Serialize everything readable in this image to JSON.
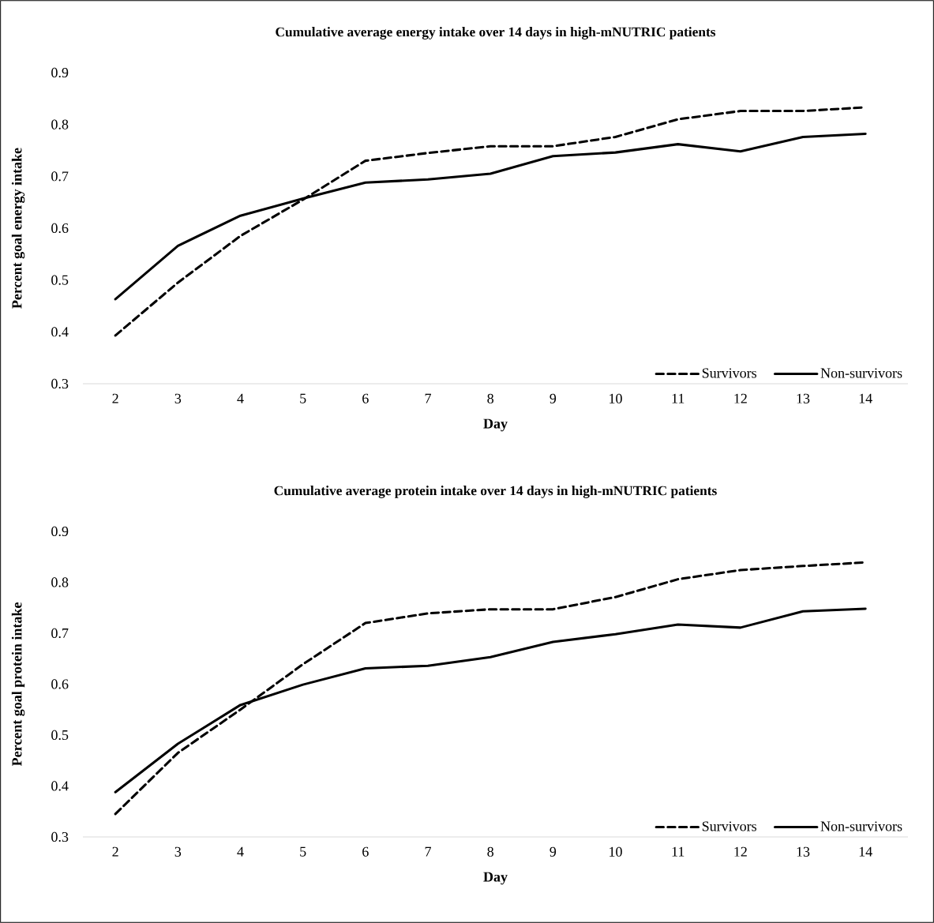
{
  "chart_data": [
    {
      "type": "line",
      "title": "Cumulative average energy intake over 14 days in high-mNUTRIC patients",
      "xlabel": "Day",
      "ylabel": "Percent goal energy intake",
      "categories": [
        "2",
        "3",
        "4",
        "5",
        "6",
        "7",
        "8",
        "9",
        "10",
        "11",
        "12",
        "13",
        "14"
      ],
      "ylim": [
        0.3,
        0.9
      ],
      "yticks": [
        0.3,
        0.4,
        0.5,
        0.6,
        0.7,
        0.8,
        0.9
      ],
      "legend": "bottom right",
      "series": [
        {
          "name": "Survivors",
          "color": "#000000",
          "line_style": "dashed",
          "values": [
            0.393,
            0.495,
            0.585,
            0.655,
            0.73,
            0.745,
            0.758,
            0.758,
            0.776,
            0.81,
            0.826,
            0.826,
            0.833
          ]
        },
        {
          "name": "Non-survivors",
          "color": "#000000",
          "line_style": "solid",
          "values": [
            0.463,
            0.566,
            0.624,
            0.657,
            0.688,
            0.694,
            0.705,
            0.739,
            0.746,
            0.762,
            0.748,
            0.776,
            0.782
          ]
        }
      ]
    },
    {
      "type": "line",
      "title": "Cumulative average protein intake over 14 days in high-mNUTRIC patients",
      "xlabel": "Day",
      "ylabel": "Percent goal protein intake",
      "categories": [
        "2",
        "3",
        "4",
        "5",
        "6",
        "7",
        "8",
        "9",
        "10",
        "11",
        "12",
        "13",
        "14"
      ],
      "ylim": [
        0.3,
        0.9
      ],
      "yticks": [
        0.3,
        0.4,
        0.5,
        0.6,
        0.7,
        0.8,
        0.9
      ],
      "legend": "bottom right",
      "series": [
        {
          "name": "Survivors",
          "color": "#000000",
          "line_style": "dashed",
          "values": [
            0.345,
            0.465,
            0.55,
            0.639,
            0.72,
            0.739,
            0.747,
            0.747,
            0.771,
            0.806,
            0.824,
            0.832,
            0.839
          ]
        },
        {
          "name": "Non-survivors",
          "color": "#000000",
          "line_style": "solid",
          "values": [
            0.388,
            0.483,
            0.559,
            0.599,
            0.631,
            0.636,
            0.653,
            0.683,
            0.698,
            0.717,
            0.711,
            0.743,
            0.748
          ]
        }
      ]
    }
  ]
}
